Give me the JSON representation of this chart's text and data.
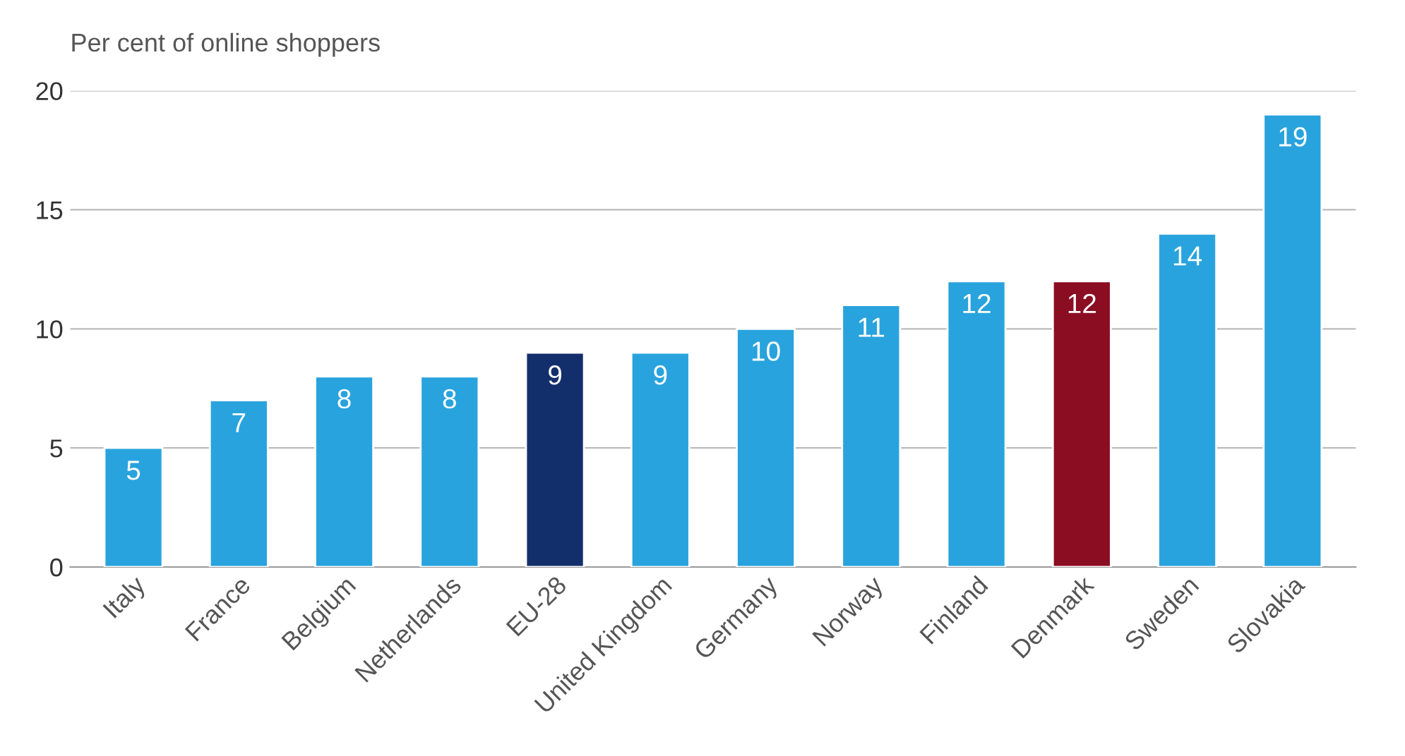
{
  "chart_data": {
    "type": "bar",
    "ylabel": "Per cent of online shoppers",
    "categories": [
      "Italy",
      "France",
      "Belgium",
      "Netherlands",
      "EU-28",
      "United Kingdom",
      "Germany",
      "Norway",
      "Finland",
      "Denmark",
      "Sweden",
      "Slovakia"
    ],
    "values": [
      5,
      7,
      8,
      8,
      9,
      9,
      10,
      11,
      12,
      12,
      14,
      19
    ],
    "colors": [
      "#29a3dd",
      "#29a3dd",
      "#29a3dd",
      "#29a3dd",
      "#132f6b",
      "#29a3dd",
      "#29a3dd",
      "#29a3dd",
      "#29a3dd",
      "#8b0d22",
      "#29a3dd",
      "#29a3dd"
    ],
    "ylim": [
      0,
      20
    ],
    "yticks": [
      0,
      5,
      10,
      15,
      20
    ],
    "grid": "y",
    "data_labels": true
  }
}
